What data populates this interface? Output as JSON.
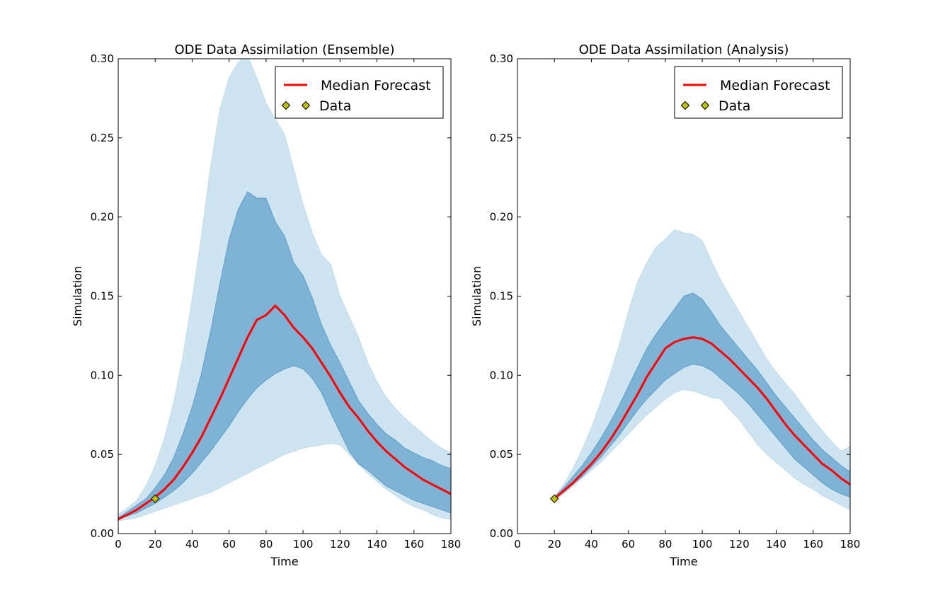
{
  "colors": {
    "outer_band": "#a6cee3",
    "inner_band": "#1f78b4",
    "median_line": "#ff0000",
    "data_marker": "#bfbf00"
  },
  "chart_data": [
    {
      "type": "area",
      "title": "ODE Data Assimilation (Ensemble)",
      "xlabel": "Time",
      "ylabel": "Simulation",
      "xlim": [
        0,
        180
      ],
      "ylim": [
        0,
        0.3
      ],
      "xticks": [
        "0",
        "20",
        "40",
        "60",
        "80",
        "100",
        "120",
        "140",
        "160",
        "180"
      ],
      "yticks": [
        "0.00",
        "0.05",
        "0.10",
        "0.15",
        "0.20",
        "0.25",
        "0.30"
      ],
      "legend": {
        "position": "top-right",
        "entries": [
          "Median Forecast",
          "Data"
        ]
      },
      "series": [
        {
          "name": "Median Forecast",
          "style": "line",
          "x": [
            0,
            5,
            10,
            15,
            20,
            25,
            30,
            35,
            40,
            45,
            50,
            55,
            60,
            65,
            70,
            75,
            80,
            85,
            90,
            95,
            100,
            105,
            110,
            115,
            120,
            125,
            130,
            135,
            140,
            145,
            150,
            155,
            160,
            165,
            170,
            175,
            180
          ],
          "y": [
            0.009,
            0.012,
            0.015,
            0.019,
            0.023,
            0.028,
            0.034,
            0.042,
            0.051,
            0.061,
            0.073,
            0.085,
            0.098,
            0.111,
            0.124,
            0.135,
            0.138,
            0.144,
            0.138,
            0.13,
            0.124,
            0.117,
            0.108,
            0.099,
            0.089,
            0.08,
            0.073,
            0.065,
            0.058,
            0.052,
            0.047,
            0.042,
            0.038,
            0.034,
            0.031,
            0.028,
            0.025
          ]
        },
        {
          "name": "Data",
          "style": "marker",
          "x": [
            20
          ],
          "y": [
            0.022
          ]
        }
      ],
      "bands": {
        "x": [
          0,
          5,
          10,
          15,
          20,
          25,
          30,
          35,
          40,
          45,
          50,
          55,
          60,
          65,
          70,
          75,
          80,
          85,
          90,
          95,
          100,
          105,
          110,
          115,
          120,
          125,
          130,
          135,
          140,
          145,
          150,
          155,
          160,
          165,
          170,
          175,
          180
        ],
        "outer_lower": [
          0.008,
          0.009,
          0.01,
          0.012,
          0.014,
          0.016,
          0.018,
          0.02,
          0.022,
          0.024,
          0.026,
          0.029,
          0.032,
          0.035,
          0.038,
          0.041,
          0.044,
          0.047,
          0.05,
          0.052,
          0.054,
          0.055,
          0.056,
          0.057,
          0.056,
          0.05,
          0.044,
          0.038,
          0.033,
          0.028,
          0.024,
          0.02,
          0.017,
          0.015,
          0.012,
          0.01,
          0.009
        ],
        "outer_upper": [
          0.012,
          0.016,
          0.021,
          0.03,
          0.043,
          0.06,
          0.083,
          0.112,
          0.148,
          0.188,
          0.232,
          0.268,
          0.288,
          0.298,
          0.302,
          0.288,
          0.272,
          0.262,
          0.252,
          0.23,
          0.208,
          0.19,
          0.176,
          0.17,
          0.15,
          0.137,
          0.124,
          0.108,
          0.096,
          0.086,
          0.079,
          0.073,
          0.068,
          0.063,
          0.058,
          0.054,
          0.051
        ],
        "inner_lower": [
          0.009,
          0.011,
          0.013,
          0.016,
          0.019,
          0.023,
          0.027,
          0.032,
          0.038,
          0.045,
          0.052,
          0.06,
          0.068,
          0.077,
          0.085,
          0.092,
          0.097,
          0.101,
          0.104,
          0.106,
          0.104,
          0.098,
          0.089,
          0.076,
          0.064,
          0.052,
          0.044,
          0.04,
          0.035,
          0.03,
          0.027,
          0.024,
          0.021,
          0.019,
          0.017,
          0.015,
          0.013
        ],
        "inner_upper": [
          0.01,
          0.014,
          0.018,
          0.022,
          0.029,
          0.037,
          0.048,
          0.063,
          0.08,
          0.101,
          0.128,
          0.158,
          0.186,
          0.205,
          0.216,
          0.212,
          0.212,
          0.197,
          0.188,
          0.171,
          0.163,
          0.149,
          0.132,
          0.119,
          0.108,
          0.096,
          0.084,
          0.076,
          0.069,
          0.063,
          0.059,
          0.054,
          0.051,
          0.048,
          0.046,
          0.043,
          0.041
        ]
      }
    },
    {
      "type": "area",
      "title": "ODE Data Assimilation (Analysis)",
      "xlabel": "Time",
      "ylabel": "Simulation",
      "xlim": [
        0,
        180
      ],
      "ylim": [
        0,
        0.3
      ],
      "xticks": [
        "0",
        "20",
        "40",
        "60",
        "80",
        "100",
        "120",
        "140",
        "160",
        "180"
      ],
      "yticks": [
        "0.00",
        "0.05",
        "0.10",
        "0.15",
        "0.20",
        "0.25",
        "0.30"
      ],
      "legend": {
        "position": "top-right",
        "entries": [
          "Median Forecast",
          "Data"
        ]
      },
      "series": [
        {
          "name": "Median Forecast",
          "style": "line",
          "x": [
            20,
            25,
            30,
            35,
            40,
            45,
            50,
            55,
            60,
            65,
            70,
            75,
            80,
            85,
            90,
            95,
            100,
            105,
            110,
            115,
            120,
            125,
            130,
            135,
            140,
            145,
            150,
            155,
            160,
            165,
            170,
            175,
            180
          ],
          "y": [
            0.022,
            0.027,
            0.032,
            0.038,
            0.044,
            0.051,
            0.059,
            0.068,
            0.078,
            0.088,
            0.099,
            0.108,
            0.117,
            0.121,
            0.123,
            0.124,
            0.123,
            0.12,
            0.115,
            0.11,
            0.104,
            0.098,
            0.092,
            0.085,
            0.077,
            0.069,
            0.062,
            0.056,
            0.05,
            0.044,
            0.04,
            0.035,
            0.031
          ]
        },
        {
          "name": "Data",
          "style": "marker",
          "x": [
            20
          ],
          "y": [
            0.022
          ]
        }
      ],
      "bands": {
        "x": [
          20,
          25,
          30,
          35,
          40,
          45,
          50,
          55,
          60,
          65,
          70,
          75,
          80,
          85,
          90,
          95,
          100,
          105,
          110,
          115,
          120,
          125,
          130,
          135,
          140,
          145,
          150,
          155,
          160,
          165,
          170,
          175,
          180
        ],
        "outer_lower": [
          0.021,
          0.025,
          0.03,
          0.035,
          0.04,
          0.045,
          0.051,
          0.057,
          0.063,
          0.069,
          0.075,
          0.08,
          0.085,
          0.089,
          0.091,
          0.09,
          0.088,
          0.086,
          0.085,
          0.078,
          0.072,
          0.064,
          0.056,
          0.05,
          0.045,
          0.04,
          0.035,
          0.031,
          0.028,
          0.024,
          0.021,
          0.018,
          0.015
        ],
        "outer_upper": [
          0.023,
          0.031,
          0.041,
          0.053,
          0.067,
          0.083,
          0.1,
          0.119,
          0.14,
          0.159,
          0.171,
          0.181,
          0.186,
          0.192,
          0.19,
          0.189,
          0.185,
          0.172,
          0.16,
          0.15,
          0.14,
          0.13,
          0.12,
          0.11,
          0.102,
          0.095,
          0.088,
          0.08,
          0.072,
          0.065,
          0.058,
          0.052,
          0.055
        ],
        "inner_lower": [
          0.022,
          0.026,
          0.031,
          0.036,
          0.042,
          0.048,
          0.055,
          0.062,
          0.07,
          0.078,
          0.085,
          0.091,
          0.097,
          0.101,
          0.105,
          0.107,
          0.106,
          0.103,
          0.098,
          0.093,
          0.088,
          0.082,
          0.075,
          0.068,
          0.061,
          0.054,
          0.047,
          0.042,
          0.037,
          0.032,
          0.028,
          0.025,
          0.023
        ],
        "inner_upper": [
          0.023,
          0.029,
          0.036,
          0.043,
          0.051,
          0.06,
          0.07,
          0.081,
          0.093,
          0.105,
          0.117,
          0.126,
          0.134,
          0.142,
          0.15,
          0.152,
          0.148,
          0.14,
          0.131,
          0.124,
          0.117,
          0.11,
          0.103,
          0.095,
          0.087,
          0.08,
          0.073,
          0.066,
          0.059,
          0.053,
          0.048,
          0.043,
          0.039
        ]
      }
    }
  ]
}
